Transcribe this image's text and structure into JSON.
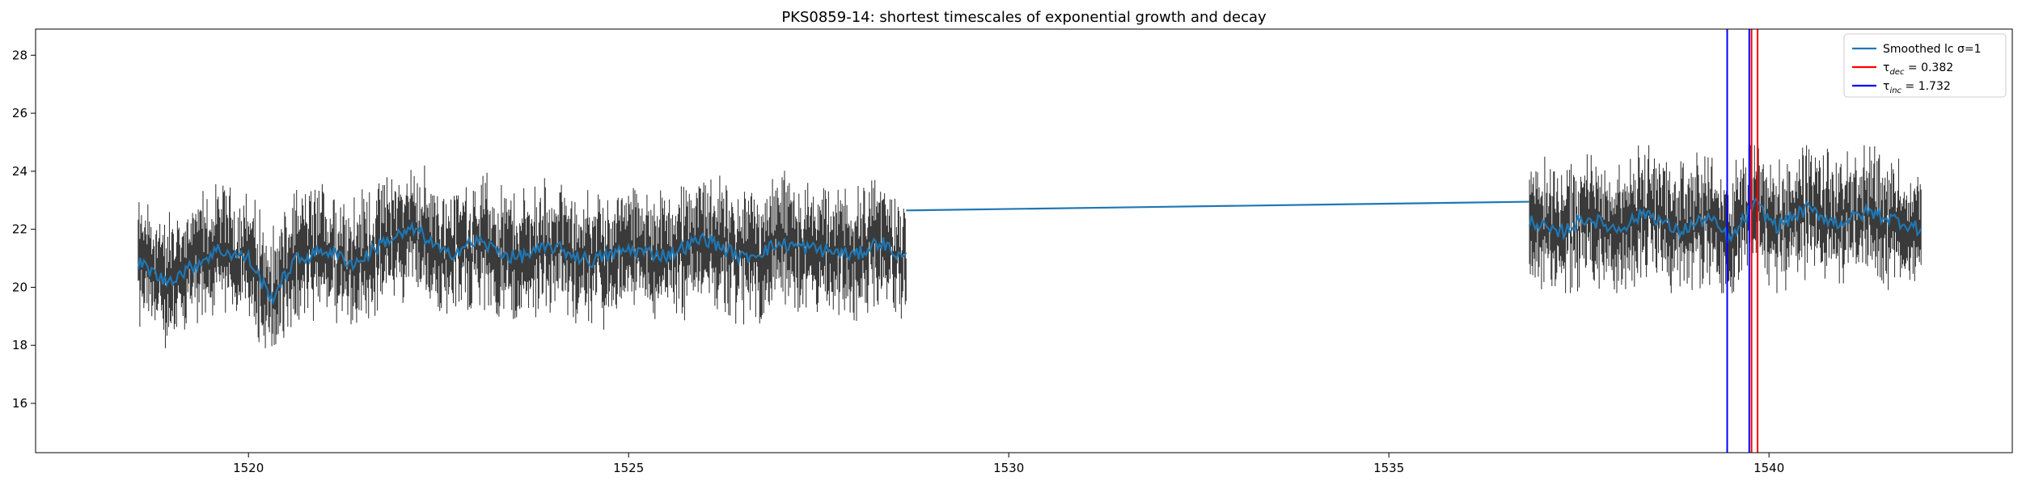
{
  "chart_data": {
    "type": "line",
    "title": "PKS0859-14: shortest timescales of exponential growth and decay",
    "xlabel": "",
    "ylabel": "",
    "xlim": [
      1517.2,
      1543.2
    ],
    "ylim": [
      14.3,
      28.9
    ],
    "xticks": [
      1520,
      1525,
      1530,
      1535,
      1540
    ],
    "yticks": [
      16,
      18,
      20,
      22,
      24,
      26,
      28
    ],
    "grid": false,
    "legend_position": "top-right",
    "segments": [
      {
        "x_start": 1518.55,
        "x_end": 1528.65,
        "mean_start": 20.6,
        "mean_end": 21.1,
        "scatter_min": 17.9,
        "scatter_max": 24.3
      },
      {
        "x_start": 1536.85,
        "x_end": 1542.0,
        "mean_start": 22.2,
        "mean_end": 22.5,
        "scatter_min": 19.8,
        "scatter_max": 24.9
      }
    ],
    "gap_line": {
      "x": [
        1528.65,
        1536.85
      ],
      "y": [
        22.65,
        22.95
      ]
    },
    "smoothed_keypoints": {
      "x": [
        1518.6,
        1518.9,
        1519.2,
        1519.6,
        1520.0,
        1520.3,
        1520.6,
        1521.0,
        1521.4,
        1521.8,
        1522.2,
        1522.6,
        1523.0,
        1523.5,
        1524.0,
        1524.5,
        1525.0,
        1525.5,
        1526.0,
        1526.5,
        1527.0,
        1527.5,
        1528.0,
        1528.3,
        1528.6
      ],
      "y": [
        20.8,
        20.2,
        20.6,
        21.3,
        21.0,
        19.6,
        20.9,
        21.3,
        20.8,
        21.6,
        22.0,
        21.1,
        21.6,
        21.0,
        21.4,
        20.9,
        21.3,
        21.1,
        21.7,
        21.0,
        21.5,
        21.3,
        21.1,
        21.6,
        21.0
      ]
    },
    "smoothed_keypoints_2": {
      "x": [
        1536.9,
        1537.2,
        1537.6,
        1538.0,
        1538.4,
        1538.8,
        1539.2,
        1539.5,
        1539.8,
        1540.1,
        1540.5,
        1540.9,
        1541.3,
        1541.7,
        1542.0
      ],
      "y": [
        22.3,
        21.8,
        22.4,
        22.0,
        22.6,
        21.9,
        22.4,
        21.6,
        22.9,
        22.1,
        22.7,
        22.2,
        22.6,
        22.3,
        22.0
      ]
    },
    "series": [
      {
        "name": "Smoothed lc σ=1",
        "color": "#1f77b4"
      },
      {
        "name": "τdec = 0.382",
        "color": "#ff0000",
        "x": [
          1539.77,
          1539.85
        ]
      },
      {
        "name": "τinc = 1.732",
        "color": "#0000ff",
        "x": [
          1539.45,
          1539.74
        ]
      }
    ],
    "legend_entries": [
      {
        "prefix": "Smoothed lc σ=1",
        "sub": "",
        "suffix": "",
        "color": "#1f77b4"
      },
      {
        "prefix": "τ",
        "sub": "dec",
        "suffix": " = 0.382",
        "color": "#ff0000"
      },
      {
        "prefix": "τ",
        "sub": "inc",
        "suffix": " = 1.732",
        "color": "#0000ff"
      }
    ],
    "colors": {
      "errorbar": "#3a3a3a",
      "smoothed": "#1f77b4",
      "dec": "#ff0000",
      "inc": "#0000ff"
    }
  }
}
